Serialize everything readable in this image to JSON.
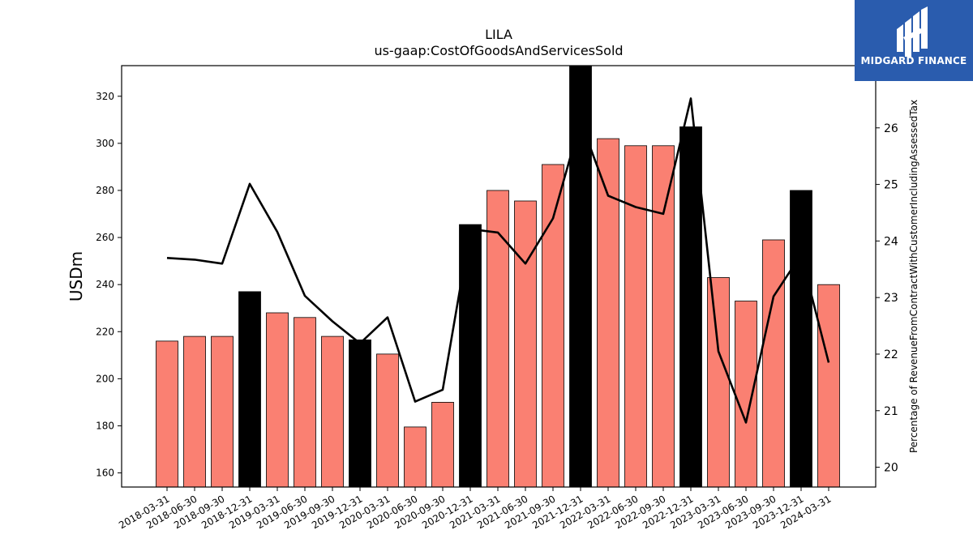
{
  "chart_data": {
    "type": "bar",
    "title": "LILA",
    "subtitle": "us-gaap:CostOfGoodsAndServicesSold",
    "ylabel": "USDm",
    "y2label": "Percentage of RevenueFromContractWithCustomerIncludingAssessedTax",
    "ylim": [
      154,
      333
    ],
    "y2lim": [
      19.65,
      27.1
    ],
    "yticks": [
      160,
      180,
      200,
      220,
      240,
      260,
      280,
      300,
      320
    ],
    "y2ticks": [
      20,
      21,
      22,
      23,
      24,
      25,
      26
    ],
    "categories": [
      "2018-03-31",
      "2018-06-30",
      "2018-09-30",
      "2018-12-31",
      "2019-03-31",
      "2019-06-30",
      "2019-09-30",
      "2019-12-31",
      "2020-03-31",
      "2020-06-30",
      "2020-09-30",
      "2020-12-31",
      "2021-03-31",
      "2021-06-30",
      "2021-09-30",
      "2021-12-31",
      "2022-03-31",
      "2022-06-30",
      "2022-09-30",
      "2022-12-31",
      "2023-03-31",
      "2023-06-30",
      "2023-09-30",
      "2023-12-31",
      "2024-03-31"
    ],
    "series": [
      {
        "type": "bar",
        "values": [
          216,
          218,
          218,
          237,
          228,
          226,
          218,
          216.5,
          210.5,
          179.5,
          190,
          265.5,
          280,
          275.5,
          291,
          333,
          302,
          299,
          299,
          307,
          243,
          233,
          259,
          280,
          240
        ],
        "highlight": [
          false,
          false,
          false,
          true,
          false,
          false,
          false,
          true,
          false,
          false,
          false,
          true,
          false,
          false,
          false,
          true,
          false,
          false,
          false,
          true,
          false,
          false,
          false,
          true,
          false
        ]
      },
      {
        "type": "line",
        "axis": "right",
        "values": [
          23.7,
          23.67,
          23.6,
          25.01,
          24.16,
          23.03,
          22.58,
          22.19,
          22.65,
          21.16,
          21.37,
          24.21,
          24.15,
          23.6,
          24.4,
          26.12,
          24.8,
          24.6,
          24.48,
          26.52,
          22.05,
          20.79,
          23.02,
          23.76,
          21.85
        ]
      }
    ],
    "colors": {
      "bar": "#fa8072",
      "highlight_bar": "#000000",
      "line": "#000000",
      "bar_edge": "#000000"
    }
  },
  "logo": {
    "text": "MIDGARD FINANCE",
    "color": "#2a5cae"
  }
}
